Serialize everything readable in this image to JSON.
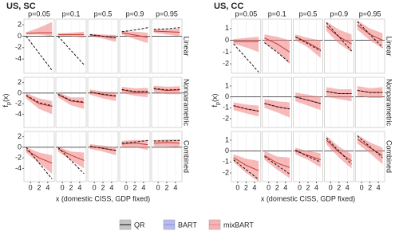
{
  "chart_data": [
    {
      "type": "facet-line",
      "title": "US, SC",
      "columns": [
        "p=0.05",
        "p=0.1",
        "p=0.5",
        "p=0.9",
        "p=0.95"
      ],
      "rows": [
        "Linear",
        "Nonparametric",
        "Combined"
      ],
      "x": [
        -1,
        2,
        5
      ],
      "xlim": [
        -1.5,
        5.5
      ],
      "xticks": [
        0,
        2,
        4
      ],
      "ylim": [
        -6.5,
        3
      ],
      "yticks": [
        2,
        0,
        -2,
        -4
      ],
      "hline": 0,
      "facets": [
        [
          {
            "qr": [
              0,
              -3,
              -6
            ],
            "mix": [
              0.5,
              0.6,
              0.6
            ],
            "lo": [
              0.3,
              0.3,
              0
            ],
            "hi": [
              0.7,
              1.5,
              2.5
            ]
          },
          {
            "qr": [
              0,
              -2.5,
              -5
            ],
            "mix": [
              0.3,
              0.3,
              0.3
            ],
            "lo": [
              0.1,
              0,
              -0.3
            ],
            "hi": [
              0.5,
              0.6,
              0.8
            ]
          },
          {
            "qr": [
              0.3,
              0,
              -0.3
            ],
            "mix": [
              0.2,
              0,
              -0.3
            ],
            "lo": [
              0,
              -0.4,
              -1
            ],
            "hi": [
              0.4,
              0.3,
              0.2
            ]
          },
          {
            "qr": [
              0.8,
              1.1,
              1.5
            ],
            "mix": [
              0.6,
              0.2,
              -0.2
            ],
            "lo": [
              0.3,
              -0.5,
              -1.2
            ],
            "hi": [
              0.9,
              0.8,
              0.6
            ]
          },
          {
            "qr": [
              1.2,
              1.3,
              1.5
            ],
            "mix": [
              0.9,
              0.8,
              0.7
            ],
            "lo": [
              0.6,
              0.3,
              0
            ],
            "hi": [
              1.2,
              1.2,
              1.3
            ]
          }
        ],
        [
          {
            "qr": [
              -0.4,
              -1.8,
              -2.4
            ],
            "mix": [
              -0.5,
              -2,
              -2.5
            ],
            "lo": [
              -1,
              -3,
              -4
            ],
            "hi": [
              0,
              -1,
              -1.5
            ]
          },
          {
            "qr": [
              -0.2,
              -1.4,
              -1.7
            ],
            "mix": [
              -0.3,
              -1.5,
              -1.8
            ],
            "lo": [
              -0.8,
              -2.3,
              -3
            ],
            "hi": [
              0.1,
              -0.8,
              -0.8
            ]
          },
          {
            "qr": [
              0.2,
              -0.2,
              -0.5
            ],
            "mix": [
              0.2,
              -0.3,
              -0.6
            ],
            "lo": [
              -0.3,
              -1,
              -1.5
            ],
            "hi": [
              0.7,
              0.3,
              0.2
            ]
          },
          {
            "qr": [
              0.7,
              0.3,
              0.3
            ],
            "mix": [
              0.6,
              0.2,
              0.2
            ],
            "lo": [
              0,
              -0.5,
              -0.8
            ],
            "hi": [
              1.2,
              0.9,
              1
            ]
          },
          {
            "qr": [
              0.9,
              0.6,
              0.7
            ],
            "mix": [
              0.8,
              0.5,
              0.6
            ],
            "lo": [
              0.2,
              -0.2,
              -0.2
            ],
            "hi": [
              1.4,
              1.2,
              1.3
            ]
          }
        ],
        [
          {
            "qr": [
              0,
              -3,
              -6
            ],
            "mix": [
              -0.5,
              -2,
              -3
            ],
            "lo": [
              -1,
              -3,
              -5
            ],
            "hi": [
              0,
              -1,
              -1.5
            ]
          },
          {
            "qr": [
              0,
              -2.5,
              -5
            ],
            "mix": [
              -0.3,
              -1.5,
              -2.5
            ],
            "lo": [
              -0.8,
              -2.5,
              -4
            ],
            "hi": [
              0.1,
              -0.8,
              -1
            ]
          },
          {
            "qr": [
              0.2,
              -0.2,
              -0.6
            ],
            "mix": [
              0.2,
              -0.2,
              -0.6
            ],
            "lo": [
              -0.3,
              -0.8,
              -1.5
            ],
            "hi": [
              0.6,
              0.3,
              0
            ]
          },
          {
            "qr": [
              0.8,
              1,
              1.3
            ],
            "mix": [
              0.6,
              0.8,
              0.5
            ],
            "lo": [
              0,
              0,
              -0.5
            ],
            "hi": [
              1.2,
              1.4,
              1.3
            ]
          },
          {
            "qr": [
              1.2,
              1.2,
              1.3
            ],
            "mix": [
              0.8,
              0.9,
              0.8
            ],
            "lo": [
              0.2,
              0.2,
              0
            ],
            "hi": [
              1.3,
              1.5,
              1.5
            ]
          }
        ]
      ]
    },
    {
      "type": "facet-line",
      "title": "US, CC",
      "columns": [
        "p=0.05",
        "p=0.1",
        "p=0.5",
        "p=0.9",
        "p=0.95"
      ],
      "rows": [
        "Linear",
        "Nonparametric",
        "Combined"
      ],
      "x": [
        -1,
        2,
        5
      ],
      "xlim": [
        -1.5,
        5.5
      ],
      "xticks": [
        0,
        2,
        4
      ],
      "ylim": [
        -2.8,
        1.8
      ],
      "yticks": [
        1,
        0,
        -1,
        -2
      ],
      "hline": 0,
      "facets": [
        [
          {
            "qr": [
              -0.3,
              -1.5,
              -2.7
            ],
            "mix": [
              -0.1,
              -0.1,
              -0.1
            ],
            "lo": [
              -0.3,
              -0.6,
              -1
            ],
            "hi": [
              0.1,
              0.2,
              0.3
            ]
          },
          {
            "qr": [
              -0.2,
              -1,
              -1.9
            ],
            "mix": [
              0.2,
              -0.3,
              -1
            ],
            "lo": [
              -0.2,
              -1,
              -2
            ],
            "hi": [
              0.5,
              0.3,
              0
            ]
          },
          {
            "qr": [
              0.3,
              -0.3,
              -0.9
            ],
            "mix": [
              0.3,
              -0.2,
              -0.8
            ],
            "lo": [
              0,
              -0.6,
              -1.5
            ],
            "hi": [
              0.5,
              0.2,
              0
            ]
          },
          {
            "qr": [
              1.5,
              0.3,
              -0.9
            ],
            "mix": [
              1.2,
              0.3,
              -0.3
            ],
            "lo": [
              0.8,
              -0.3,
              -1
            ],
            "hi": [
              1.6,
              0.9,
              0.5
            ]
          },
          {
            "qr": [
              1.6,
              0.5,
              -0.6
            ],
            "mix": [
              1.3,
              0.5,
              0
            ],
            "lo": [
              0.9,
              0,
              -0.7
            ],
            "hi": [
              1.7,
              1,
              0.6
            ]
          }
        ],
        [
          {
            "qr": [
              -0.8,
              -1.1,
              -1.3
            ],
            "mix": [
              -0.8,
              -1.1,
              -1.3
            ],
            "lo": [
              -1.2,
              -1.5,
              -1.8
            ],
            "hi": [
              -0.5,
              -0.7,
              -0.8
            ]
          },
          {
            "qr": [
              -0.6,
              -0.9,
              -1.1
            ],
            "mix": [
              -0.6,
              -0.9,
              -1.1
            ],
            "lo": [
              -1,
              -1.4,
              -1.9
            ],
            "hi": [
              -0.2,
              -0.4,
              -0.5
            ]
          },
          {
            "qr": [
              0,
              -0.3,
              -0.6
            ],
            "mix": [
              0,
              -0.3,
              -0.6
            ],
            "lo": [
              -0.4,
              -0.8,
              -1.2
            ],
            "hi": [
              0.4,
              0.2,
              0
            ]
          },
          {
            "qr": [
              0.5,
              0.3,
              0.3
            ],
            "mix": [
              0.5,
              0.3,
              0.3
            ],
            "lo": [
              0,
              -0.2,
              -0.4
            ],
            "hi": [
              0.9,
              0.7,
              0.7
            ]
          },
          {
            "qr": [
              0.6,
              0.4,
              0.4
            ],
            "mix": [
              0.6,
              0.4,
              0.4
            ],
            "lo": [
              0.1,
              -0.1,
              -0.1
            ],
            "hi": [
              1,
              0.8,
              0.9
            ]
          }
        ],
        [
          {
            "qr": [
              -0.8,
              -1.7,
              -2.6
            ],
            "mix": [
              -0.6,
              -1.3,
              -1.8
            ],
            "lo": [
              -1,
              -2,
              -2.8
            ],
            "hi": [
              -0.3,
              -0.7,
              -0.9
            ]
          },
          {
            "qr": [
              -0.5,
              -1.3,
              -2.1
            ],
            "mix": [
              -0.4,
              -1.1,
              -1.5
            ],
            "lo": [
              -0.8,
              -1.7,
              -2.5
            ],
            "hi": [
              0,
              -0.5,
              -0.6
            ]
          },
          {
            "qr": [
              0.1,
              -0.5,
              -1
            ],
            "mix": [
              0,
              -0.4,
              -0.8
            ],
            "lo": [
              -0.3,
              -0.8,
              -1.5
            ],
            "hi": [
              0.3,
              0,
              -0.2
            ]
          },
          {
            "qr": [
              1.2,
              0,
              -1.2
            ],
            "mix": [
              1,
              -0.1,
              -0.9
            ],
            "lo": [
              0.6,
              -0.6,
              -1.6
            ],
            "hi": [
              1.4,
              0.4,
              -0.3
            ]
          },
          {
            "qr": [
              1.4,
              0.4,
              -0.6
            ],
            "mix": [
              1.1,
              0.3,
              -0.4
            ],
            "lo": [
              0.7,
              -0.2,
              -1.2
            ],
            "hi": [
              1.5,
              0.8,
              0.3
            ]
          }
        ]
      ]
    }
  ],
  "shared": {
    "xlabel": "x (domestic CISS, GDP fixed)",
    "ylabel": "f",
    "ylabel_sub": "p",
    "ylabel_rest": "(x)",
    "legend": [
      {
        "name": "QR",
        "color": "#9e9e9e"
      },
      {
        "name": "BART",
        "color": "#8a8ee0"
      },
      {
        "name": "mixBART",
        "color": "#f08080"
      }
    ]
  }
}
